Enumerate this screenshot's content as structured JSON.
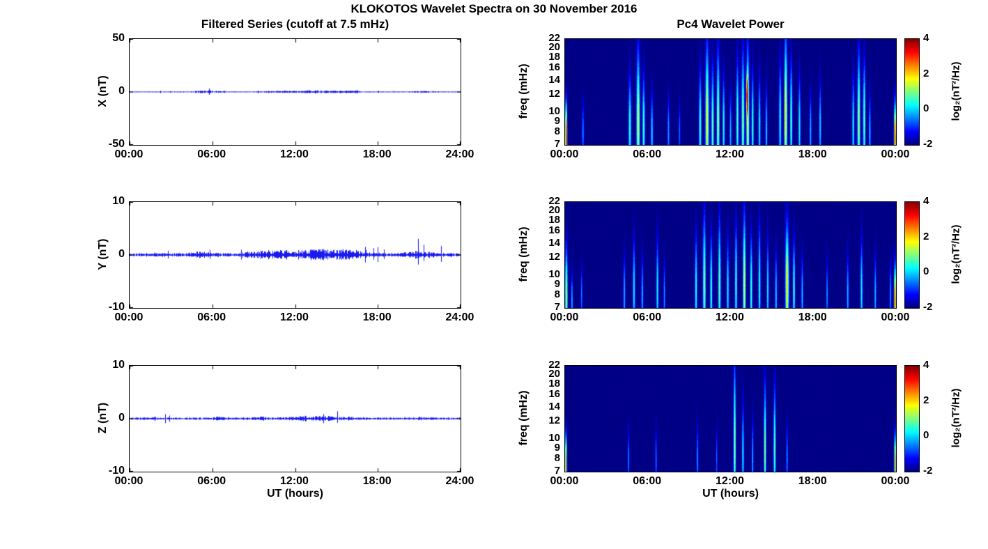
{
  "main_title": "KLOKOTOS Wavelet Spectra on 30 November 2016",
  "chart_data": [
    {
      "type": "line",
      "title": "Filtered Series (cutoff at 7.5 mHz)",
      "xlabel": "UT (hours)",
      "x_range_hours": [
        0,
        24
      ],
      "xticks": [
        "00:00",
        "06:00",
        "12:00",
        "18:00",
        "24:00"
      ],
      "line_color": "#0000ee",
      "panels": [
        {
          "ylabel": "X (nT)",
          "ylim": [
            -50,
            50
          ],
          "yticks": [
            50,
            0,
            -50
          ],
          "seed": 11,
          "base_amp": 0.35,
          "spike_prob": 0.02,
          "bursts": [
            [
              5.3,
              0.8,
              0.6
            ],
            [
              6.0,
              1.0,
              0.4
            ],
            [
              11.0,
              1.2,
              0.7
            ],
            [
              13.2,
              0.8,
              0.9
            ],
            [
              14.5,
              1.0,
              0.5
            ],
            [
              16.0,
              0.8,
              0.7
            ],
            [
              21.3,
              0.8,
              0.5
            ]
          ]
        },
        {
          "ylabel": "Y (nT)",
          "ylim": [
            -10,
            10
          ],
          "yticks": [
            10,
            0,
            -10
          ],
          "seed": 22,
          "base_amp": 0.28,
          "spike_prob": 0.03,
          "bursts": [
            [
              5.0,
              0.8,
              0.25
            ],
            [
              9.5,
              1.0,
              0.35
            ],
            [
              11.0,
              1.0,
              0.35
            ],
            [
              13.0,
              1.5,
              0.45
            ],
            [
              14.5,
              1.0,
              0.4
            ],
            [
              16.0,
              1.0,
              0.5
            ],
            [
              21.0,
              1.0,
              0.3
            ]
          ]
        },
        {
          "ylabel": "Z (nT)",
          "ylim": [
            -10,
            10
          ],
          "yticks": [
            10,
            0,
            -10
          ],
          "seed": 33,
          "base_amp": 0.18,
          "spike_prob": 0.025,
          "bursts": [
            [
              6.5,
              0.5,
              0.15
            ],
            [
              9.5,
              0.5,
              0.15
            ],
            [
              12.5,
              1.0,
              0.2
            ],
            [
              14.0,
              1.0,
              0.25
            ],
            [
              16.0,
              0.5,
              0.15
            ],
            [
              21.0,
              0.5,
              0.1
            ]
          ]
        }
      ]
    },
    {
      "type": "heatmap",
      "title": "Pc4 Wavelet Power",
      "xlabel": "UT (hours)",
      "ylabel": "freq (mHz)",
      "x_range_hours": [
        0,
        24
      ],
      "xticks": [
        "00:00",
        "06:00",
        "12:00",
        "18:00",
        "00:00"
      ],
      "yticks": [
        22,
        20,
        18,
        16,
        14,
        12,
        10,
        9,
        8,
        7
      ],
      "freq_range_mhz": [
        7,
        22
      ],
      "yscale": "log",
      "background_power": -2,
      "colorbar": {
        "label": "log₂(nT²/Hz)",
        "ticks": [
          4,
          2,
          0,
          -2
        ],
        "range": [
          -2,
          4
        ],
        "colormap": "jet"
      },
      "streak_format": "[hour, width_hours, freq_mhz, freq_spread_log, peak_log2_power]",
      "panels": [
        {
          "component": "X",
          "seed": 101,
          "streaks": [
            [
              0.08,
              0.07,
              7.5,
              0.35,
              6.2
            ],
            [
              1.3,
              0.08,
              8,
              0.3,
              1.6
            ],
            [
              4.7,
              0.1,
              8.5,
              0.5,
              2.6
            ],
            [
              5.3,
              0.12,
              9,
              0.7,
              3.6
            ],
            [
              5.7,
              0.09,
              8.5,
              0.5,
              2.8
            ],
            [
              6.3,
              0.08,
              8,
              0.4,
              2.2
            ],
            [
              7.5,
              0.07,
              8,
              0.35,
              1.8
            ],
            [
              8.3,
              0.06,
              8,
              0.3,
              1.5
            ],
            [
              9.8,
              0.09,
              8.5,
              0.55,
              2.8
            ],
            [
              10.3,
              0.12,
              9,
              0.75,
              3.8
            ],
            [
              10.7,
              0.09,
              8.5,
              0.6,
              3.0
            ],
            [
              11.1,
              0.1,
              9,
              0.7,
              3.4
            ],
            [
              11.5,
              0.08,
              8.5,
              0.5,
              2.6
            ],
            [
              12.0,
              0.07,
              8,
              0.4,
              2.0
            ],
            [
              12.5,
              0.09,
              9,
              0.6,
              2.8
            ],
            [
              12.9,
              0.1,
              9,
              0.7,
              3.2
            ],
            [
              13.2,
              0.05,
              12,
              0.18,
              5.6
            ],
            [
              13.25,
              0.1,
              9,
              0.75,
              3.8
            ],
            [
              13.6,
              0.08,
              8.5,
              0.55,
              2.8
            ],
            [
              14.1,
              0.08,
              8.5,
              0.5,
              2.4
            ],
            [
              14.6,
              0.07,
              8,
              0.45,
              2.2
            ],
            [
              15.6,
              0.08,
              9,
              0.6,
              2.6
            ],
            [
              16.0,
              0.11,
              9.5,
              0.8,
              3.9
            ],
            [
              16.4,
              0.08,
              9,
              0.6,
              3.0
            ],
            [
              17.0,
              0.08,
              8.5,
              0.5,
              2.4
            ],
            [
              17.8,
              0.07,
              8,
              0.4,
              2.0
            ],
            [
              18.5,
              0.07,
              8.5,
              0.45,
              2.2
            ],
            [
              20.9,
              0.08,
              8.5,
              0.5,
              2.4
            ],
            [
              21.3,
              0.1,
              9,
              0.7,
              3.4
            ],
            [
              21.7,
              0.09,
              9,
              0.6,
              3.0
            ],
            [
              22.1,
              0.07,
              8,
              0.4,
              2.0
            ],
            [
              23.93,
              0.07,
              7.5,
              0.35,
              6.0
            ]
          ]
        },
        {
          "component": "Y",
          "seed": 202,
          "streaks": [
            [
              0.1,
              0.09,
              8,
              0.5,
              3.4
            ],
            [
              0.5,
              0.06,
              7.5,
              0.3,
              2.0
            ],
            [
              1.2,
              0.06,
              8,
              0.3,
              1.6
            ],
            [
              4.3,
              0.07,
              8,
              0.4,
              2.0
            ],
            [
              5.0,
              0.08,
              8.5,
              0.5,
              2.4
            ],
            [
              5.6,
              0.07,
              8,
              0.4,
              2.0
            ],
            [
              6.7,
              0.08,
              8.5,
              0.5,
              2.4
            ],
            [
              7.2,
              0.06,
              8,
              0.35,
              1.8
            ],
            [
              9.5,
              0.08,
              8.5,
              0.55,
              2.6
            ],
            [
              10.1,
              0.1,
              9,
              0.7,
              3.2
            ],
            [
              10.6,
              0.08,
              8.5,
              0.55,
              2.8
            ],
            [
              11.2,
              0.09,
              9,
              0.65,
              3.0
            ],
            [
              11.8,
              0.08,
              8.5,
              0.5,
              2.4
            ],
            [
              12.4,
              0.08,
              9,
              0.6,
              2.8
            ],
            [
              13.0,
              0.1,
              9,
              0.7,
              3.6
            ],
            [
              13.5,
              0.08,
              8.5,
              0.55,
              2.8
            ],
            [
              14.1,
              0.08,
              9,
              0.6,
              2.6
            ],
            [
              14.7,
              0.07,
              8.5,
              0.5,
              2.4
            ],
            [
              15.3,
              0.07,
              8,
              0.45,
              2.2
            ],
            [
              16.1,
              0.12,
              9,
              0.6,
              4.0
            ],
            [
              16.6,
              0.08,
              8.5,
              0.5,
              2.8
            ],
            [
              17.2,
              0.07,
              8,
              0.4,
              2.0
            ],
            [
              19.0,
              0.06,
              8,
              0.35,
              1.8
            ],
            [
              20.5,
              0.07,
              8,
              0.4,
              2.0
            ],
            [
              21.5,
              0.08,
              8.5,
              0.5,
              2.4
            ],
            [
              22.5,
              0.07,
              8,
              0.4,
              2.0
            ],
            [
              23.6,
              0.06,
              8,
              0.35,
              1.8
            ],
            [
              23.93,
              0.07,
              7.5,
              0.35,
              5.8
            ]
          ]
        },
        {
          "component": "Z",
          "seed": 303,
          "streaks": [
            [
              0.07,
              0.06,
              7.5,
              0.3,
              5.5
            ],
            [
              4.6,
              0.06,
              8,
              0.3,
              1.6
            ],
            [
              6.6,
              0.06,
              8,
              0.3,
              1.6
            ],
            [
              9.6,
              0.06,
              8,
              0.35,
              1.8
            ],
            [
              11.0,
              0.05,
              8,
              0.3,
              1.5
            ],
            [
              12.3,
              0.08,
              9.5,
              0.8,
              3.4
            ],
            [
              12.9,
              0.07,
              8.5,
              0.5,
              2.4
            ],
            [
              13.6,
              0.06,
              8,
              0.4,
              2.0
            ],
            [
              14.5,
              0.08,
              9,
              0.65,
              3.2
            ],
            [
              15.2,
              0.08,
              9,
              0.6,
              3.0
            ],
            [
              16.1,
              0.06,
              8,
              0.35,
              1.8
            ],
            [
              23.93,
              0.06,
              7.5,
              0.3,
              5.6
            ]
          ]
        }
      ]
    }
  ]
}
